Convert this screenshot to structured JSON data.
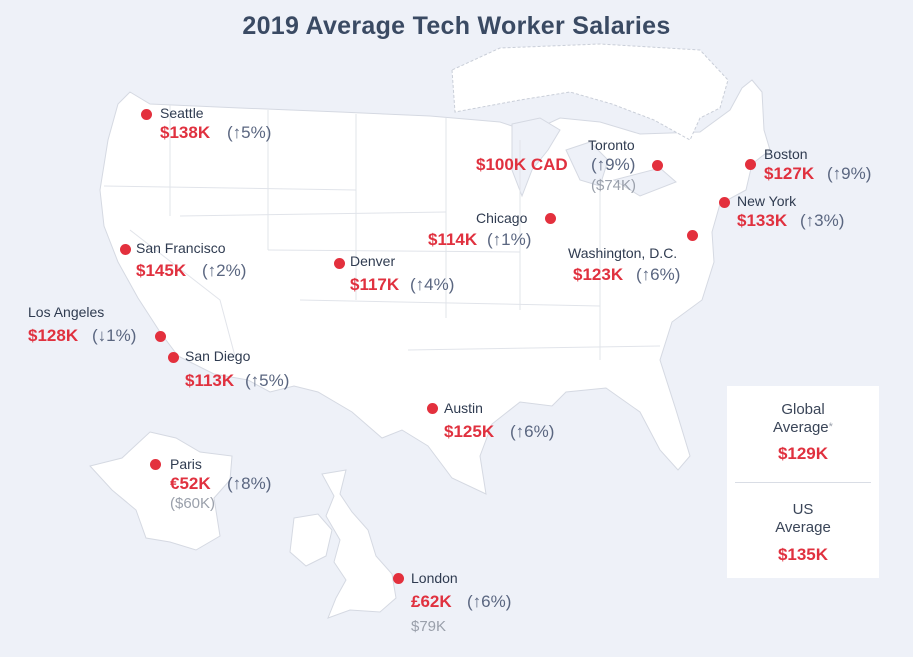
{
  "title": "2019 Average Tech Worker Salaries",
  "colors": {
    "salary": "#e0313f",
    "dot": "#e3303d",
    "land": "#ffffff",
    "background": "#eef1f8"
  },
  "cities": [
    {
      "id": "seattle",
      "name": "Seattle",
      "salary": "$138K",
      "change": "(↑5%)"
    },
    {
      "id": "toronto",
      "name": "Toronto",
      "salary": "$100K CAD",
      "change": "(↑9%)",
      "converted": "($74K)"
    },
    {
      "id": "boston",
      "name": "Boston",
      "salary": "$127K",
      "change": "(↑9%)"
    },
    {
      "id": "newyork",
      "name": "New York",
      "salary": "$133K",
      "change": "(↑3%)"
    },
    {
      "id": "chicago",
      "name": "Chicago",
      "salary": "$114K",
      "change": "(↑1%)"
    },
    {
      "id": "washington",
      "name": "Washington, D.C.",
      "salary": "$123K",
      "change": "(↑6%)"
    },
    {
      "id": "sanfran",
      "name": "San Francisco",
      "salary": "$145K",
      "change": "(↑2%)"
    },
    {
      "id": "denver",
      "name": "Denver",
      "salary": "$117K",
      "change": "(↑4%)"
    },
    {
      "id": "losangeles",
      "name": "Los Angeles",
      "salary": "$128K",
      "change": "(↓1%)"
    },
    {
      "id": "sandiego",
      "name": "San Diego",
      "salary": "$113K",
      "change": "(↑5%)"
    },
    {
      "id": "austin",
      "name": "Austin",
      "salary": "$125K",
      "change": "(↑6%)"
    },
    {
      "id": "paris",
      "name": "Paris",
      "salary": "€52K",
      "change": "(↑8%)",
      "converted": "($60K)"
    },
    {
      "id": "london",
      "name": "London",
      "salary": "£62K",
      "change": "(↑6%)",
      "converted": "$79K"
    }
  ],
  "averages": {
    "global": {
      "line1": "Global",
      "line2": "Average",
      "marker": "*",
      "value": "$129K"
    },
    "us": {
      "line1": "US",
      "line2": "Average",
      "value": "$135K"
    }
  }
}
